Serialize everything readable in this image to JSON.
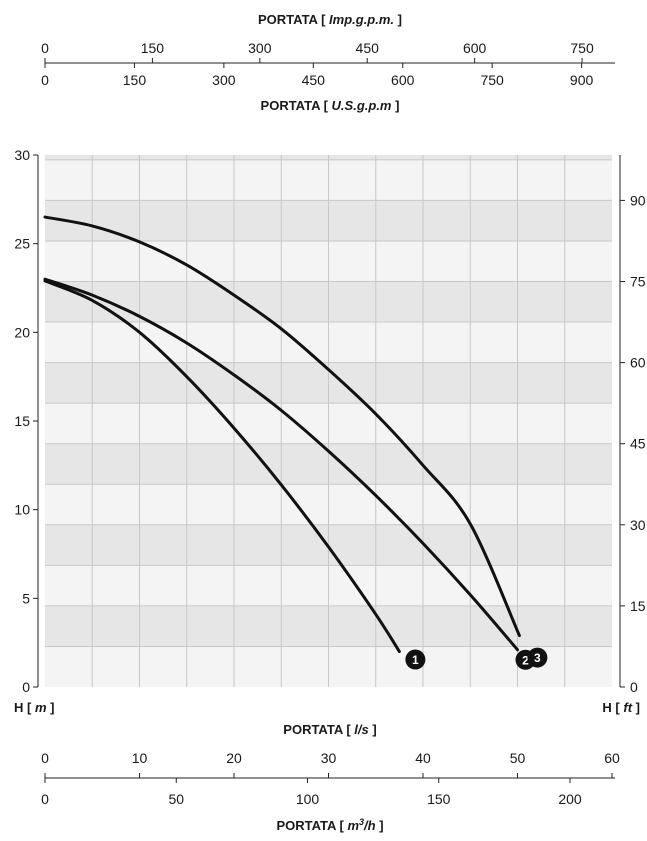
{
  "chart_data": {
    "type": "line",
    "title": "",
    "x": [
      0,
      5,
      10,
      15,
      20,
      25,
      30,
      35,
      40,
      45,
      50
    ],
    "series": [
      {
        "name": "1",
        "values": [
          22.9,
          21.8,
          20.0,
          17.5,
          14.6,
          11.4,
          7.9,
          4.1,
          null,
          null,
          null
        ],
        "end": [
          37.5,
          2.0
        ]
      },
      {
        "name": "2",
        "values": [
          23.0,
          22.1,
          20.9,
          19.4,
          17.6,
          15.6,
          13.3,
          10.8,
          8.1,
          5.2,
          null
        ],
        "end": [
          50.0,
          2.1
        ]
      },
      {
        "name": "3",
        "values": [
          26.5,
          26.0,
          25.1,
          23.8,
          22.1,
          20.2,
          17.9,
          15.4,
          12.5,
          9.2,
          null
        ],
        "end": [
          50.2,
          2.9
        ]
      }
    ],
    "axes": {
      "bottom_primary": {
        "label": "PORTATA",
        "unit": "l/s",
        "ticks": [
          "0",
          "10",
          "20",
          "30",
          "40",
          "50",
          "60"
        ],
        "range": [
          0,
          60
        ]
      },
      "bottom_secondary": {
        "label": "PORTATA",
        "unit": "m3/h",
        "ticks": [
          "0",
          "50",
          "100",
          "150",
          "200"
        ],
        "range": [
          0,
          216
        ]
      },
      "top_primary": {
        "label": "PORTATA",
        "unit": "Imp.g.p.m.",
        "ticks": [
          "0",
          "150",
          "300",
          "450",
          "600",
          "750"
        ],
        "range": [
          0,
          791.8
        ]
      },
      "top_secondary": {
        "label": "PORTATA",
        "unit": "U.S.g.p.m",
        "ticks": [
          "0",
          "150",
          "300",
          "450",
          "600",
          "750",
          "900"
        ],
        "range": [
          0,
          951
        ]
      },
      "left": {
        "label": "H",
        "unit": "m",
        "ticks": [
          "0",
          "5",
          "10",
          "15",
          "20",
          "25",
          "30"
        ],
        "range": [
          0,
          30
        ]
      },
      "right": {
        "label": "H",
        "unit": "ft",
        "ticks": [
          "0",
          "15",
          "30",
          "45",
          "60",
          "75",
          "90"
        ],
        "range": [
          0,
          98.4
        ]
      }
    },
    "grid": true,
    "legend": "curve-end markers"
  }
}
